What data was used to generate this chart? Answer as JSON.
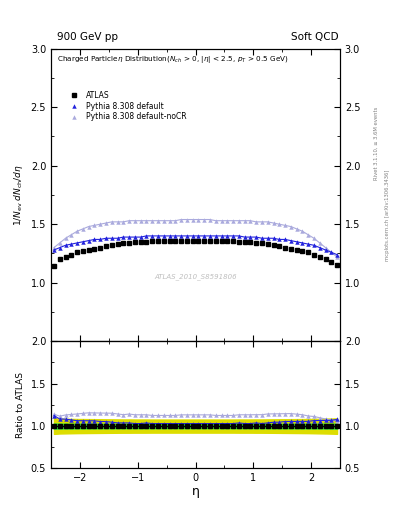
{
  "title_left": "900 GeV pp",
  "title_right": "Soft QCD",
  "right_label_top": "Rivet 3.1.10, ≥ 3.6M events",
  "right_label_bot": "mcplots.cern.ch [arXiv:1306.3436]",
  "plot_title": "Charged Particleη Distribution(N_{ch} > 0, |η| < 2.5, p_{T} > 0.5 GeV)",
  "watermark": "ATLAS_2010_S8591806",
  "xlabel": "η",
  "ylabel": "1/N_{ev} dN_{ch}/dη",
  "ylabel_ratio": "Ratio to ATLAS",
  "ylim_main": [
    0.5,
    3.0
  ],
  "ylim_ratio": [
    0.5,
    2.0
  ],
  "yticks_main": [
    1.0,
    1.5,
    2.0,
    2.5,
    3.0
  ],
  "yticks_ratio": [
    0.5,
    1.0,
    1.5,
    2.0
  ],
  "xlim": [
    -2.5,
    2.5
  ],
  "xticks": [
    -2,
    -1,
    0,
    1,
    2
  ],
  "atlas_color": "black",
  "pythia_default_color": "#2222dd",
  "pythia_nocr_color": "#aaaadd",
  "band_green": "#33dd33",
  "band_yellow": "#dddd00",
  "legend_entries": [
    "ATLAS",
    "Pythia 8.308 default",
    "Pythia 8.308 default-noCR"
  ],
  "eta_values": [
    -2.45,
    -2.35,
    -2.25,
    -2.15,
    -2.05,
    -1.95,
    -1.85,
    -1.75,
    -1.65,
    -1.55,
    -1.45,
    -1.35,
    -1.25,
    -1.15,
    -1.05,
    -0.95,
    -0.85,
    -0.75,
    -0.65,
    -0.55,
    -0.45,
    -0.35,
    -0.25,
    -0.15,
    -0.05,
    0.05,
    0.15,
    0.25,
    0.35,
    0.45,
    0.55,
    0.65,
    0.75,
    0.85,
    0.95,
    1.05,
    1.15,
    1.25,
    1.35,
    1.45,
    1.55,
    1.65,
    1.75,
    1.85,
    1.95,
    2.05,
    2.15,
    2.25,
    2.35,
    2.45
  ],
  "atlas_values": [
    1.14,
    1.2,
    1.22,
    1.24,
    1.26,
    1.27,
    1.28,
    1.29,
    1.3,
    1.31,
    1.32,
    1.33,
    1.34,
    1.34,
    1.35,
    1.35,
    1.35,
    1.36,
    1.36,
    1.36,
    1.36,
    1.36,
    1.36,
    1.36,
    1.36,
    1.36,
    1.36,
    1.36,
    1.36,
    1.36,
    1.36,
    1.36,
    1.35,
    1.35,
    1.35,
    1.34,
    1.34,
    1.33,
    1.32,
    1.31,
    1.3,
    1.29,
    1.28,
    1.27,
    1.26,
    1.24,
    1.22,
    1.2,
    1.18,
    1.15
  ],
  "atlas_err": [
    0.035,
    0.035,
    0.035,
    0.035,
    0.035,
    0.035,
    0.035,
    0.035,
    0.035,
    0.035,
    0.035,
    0.035,
    0.035,
    0.035,
    0.035,
    0.035,
    0.035,
    0.035,
    0.035,
    0.035,
    0.035,
    0.035,
    0.035,
    0.035,
    0.035,
    0.035,
    0.035,
    0.035,
    0.035,
    0.035,
    0.035,
    0.035,
    0.035,
    0.035,
    0.035,
    0.035,
    0.035,
    0.035,
    0.035,
    0.035,
    0.035,
    0.035,
    0.035,
    0.035,
    0.035,
    0.035,
    0.035,
    0.035,
    0.035,
    0.035
  ],
  "pythia_default_values": [
    1.28,
    1.3,
    1.32,
    1.33,
    1.34,
    1.35,
    1.36,
    1.37,
    1.37,
    1.38,
    1.38,
    1.38,
    1.39,
    1.39,
    1.39,
    1.39,
    1.4,
    1.4,
    1.4,
    1.4,
    1.4,
    1.4,
    1.4,
    1.4,
    1.4,
    1.4,
    1.4,
    1.4,
    1.4,
    1.4,
    1.4,
    1.4,
    1.4,
    1.39,
    1.39,
    1.39,
    1.38,
    1.38,
    1.38,
    1.37,
    1.37,
    1.36,
    1.35,
    1.34,
    1.33,
    1.32,
    1.3,
    1.28,
    1.26,
    1.24
  ],
  "pythia_nocr_values": [
    1.3,
    1.34,
    1.38,
    1.41,
    1.44,
    1.46,
    1.48,
    1.49,
    1.5,
    1.51,
    1.52,
    1.52,
    1.52,
    1.53,
    1.53,
    1.53,
    1.53,
    1.53,
    1.53,
    1.53,
    1.53,
    1.53,
    1.54,
    1.54,
    1.54,
    1.54,
    1.54,
    1.54,
    1.53,
    1.53,
    1.53,
    1.53,
    1.53,
    1.53,
    1.53,
    1.52,
    1.52,
    1.52,
    1.51,
    1.5,
    1.49,
    1.48,
    1.46,
    1.44,
    1.41,
    1.38,
    1.34,
    1.3,
    1.26,
    1.22
  ]
}
